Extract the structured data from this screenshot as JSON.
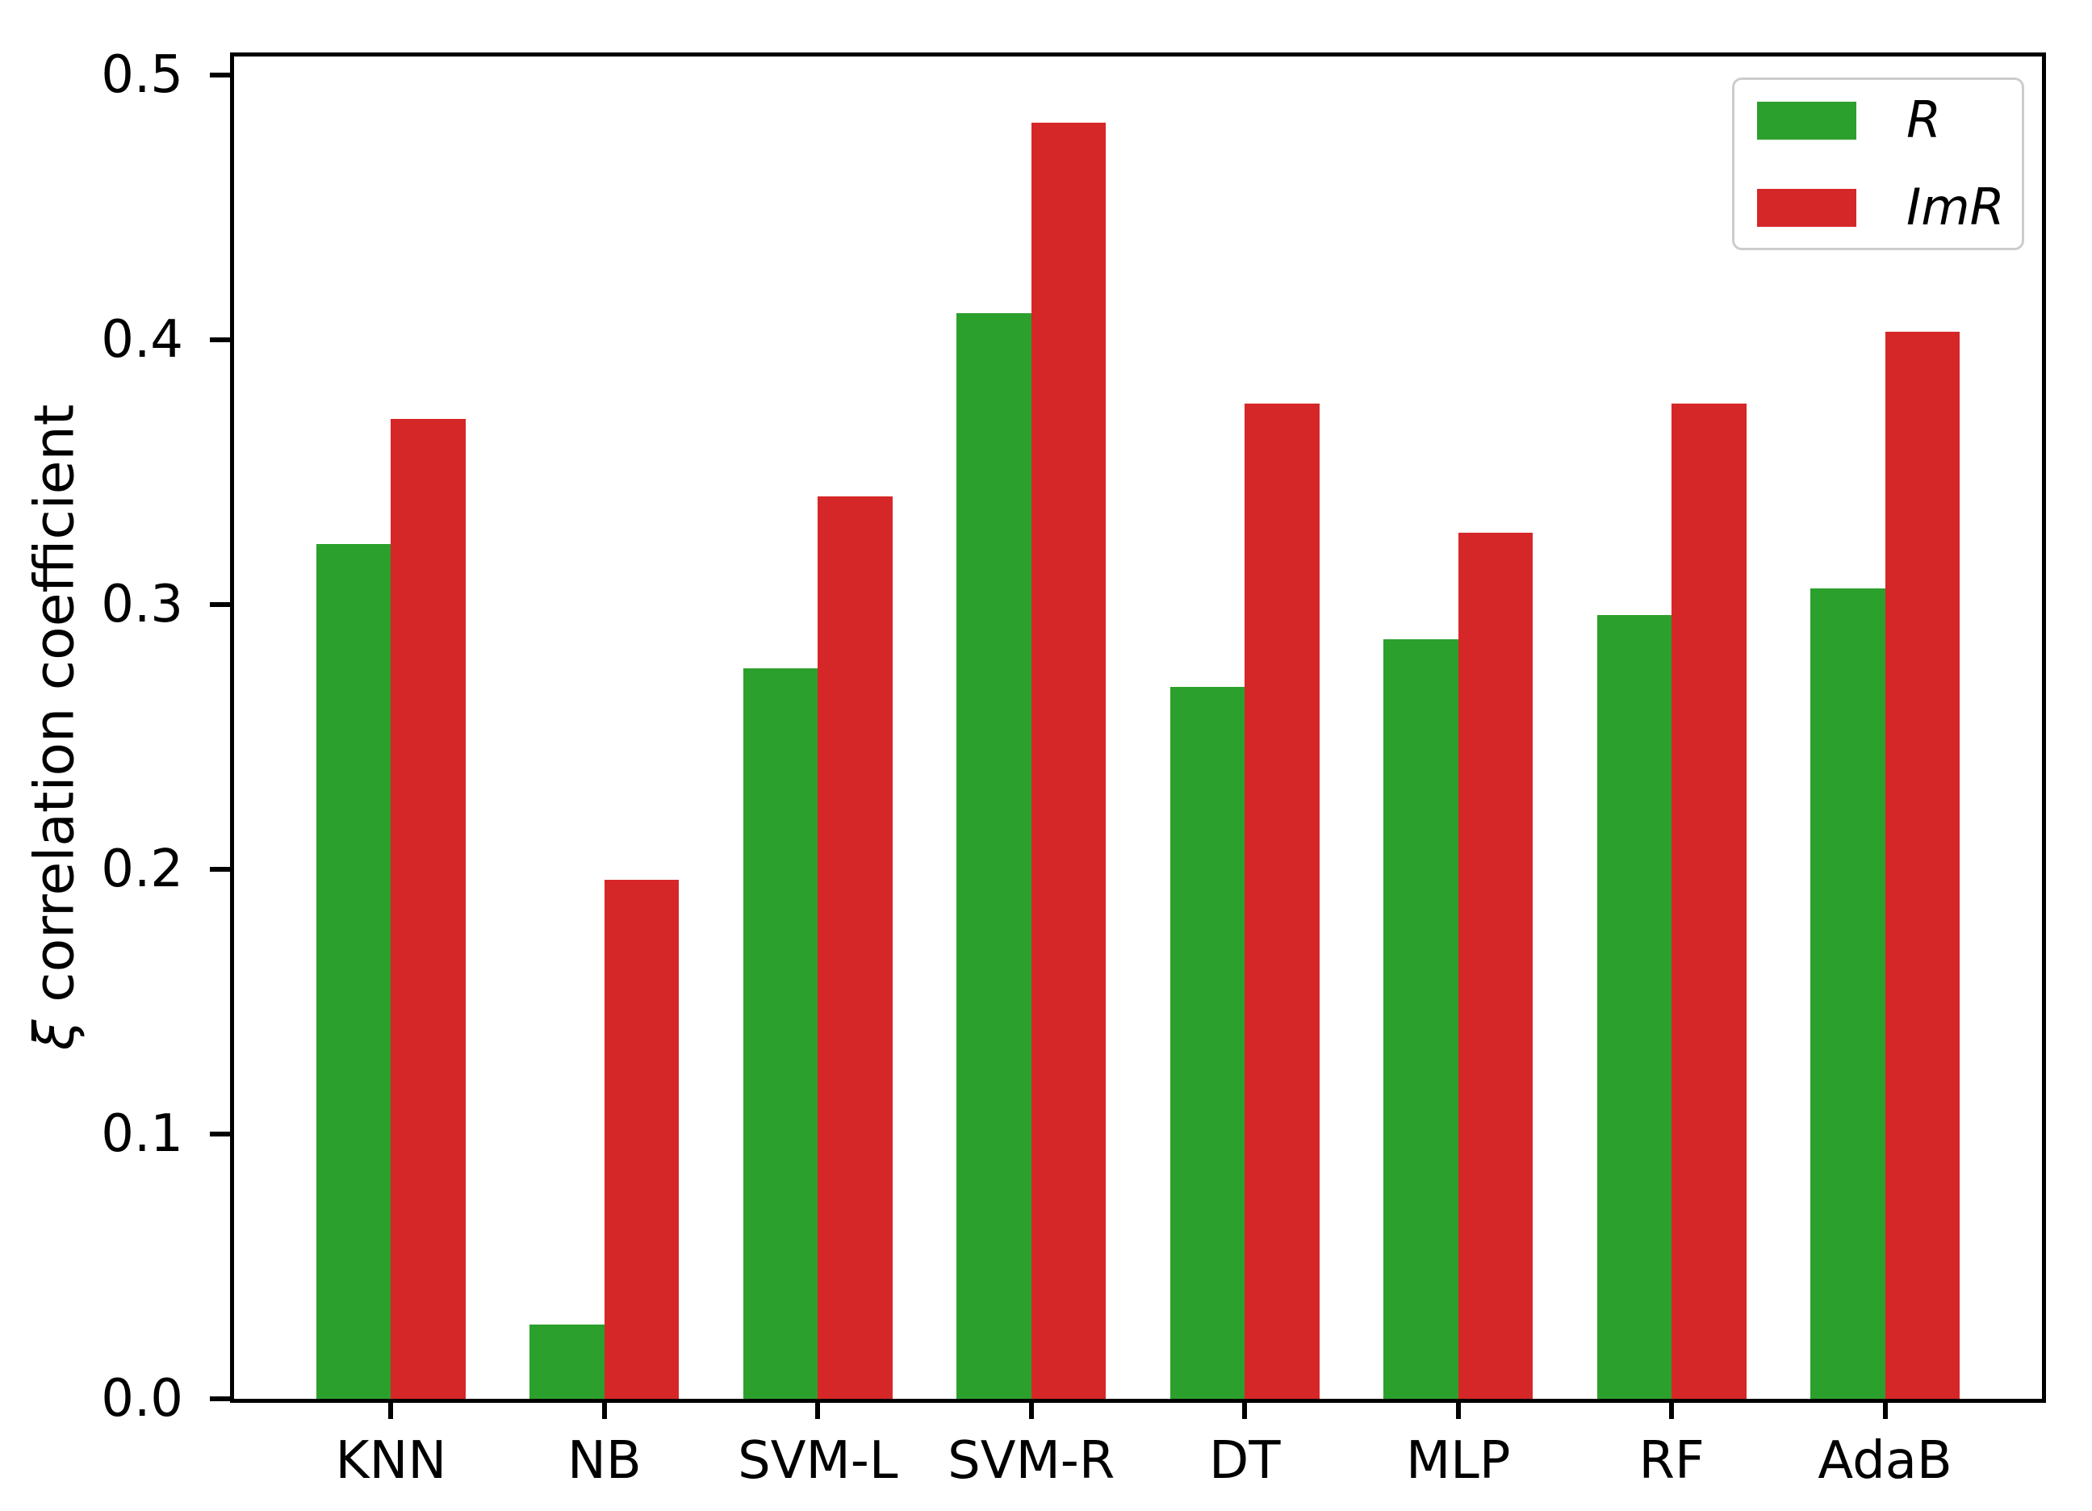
{
  "chart_data": {
    "type": "bar",
    "title": "",
    "xlabel": "",
    "ylabel": "ξ correlation coefficient",
    "ylabel_symbol": "ξ",
    "ylabel_rest": " correlation coefficient",
    "categories": [
      "KNN",
      "NB",
      "SVM-L",
      "SVM-R",
      "DT",
      "MLP",
      "RF",
      "AdaB"
    ],
    "series": [
      {
        "name": "R",
        "color": "#2ca02c",
        "values": [
          0.323,
          0.028,
          0.276,
          0.41,
          0.269,
          0.287,
          0.296,
          0.306
        ]
      },
      {
        "name": "ImR",
        "color": "#d62728",
        "values": [
          0.37,
          0.196,
          0.341,
          0.482,
          0.376,
          0.327,
          0.376,
          0.403
        ]
      }
    ],
    "yticks": [
      0.0,
      0.1,
      0.2,
      0.3,
      0.4,
      0.5
    ],
    "ylim": [
      0,
      0.507
    ],
    "legend_position": "upper right",
    "grid": false
  }
}
